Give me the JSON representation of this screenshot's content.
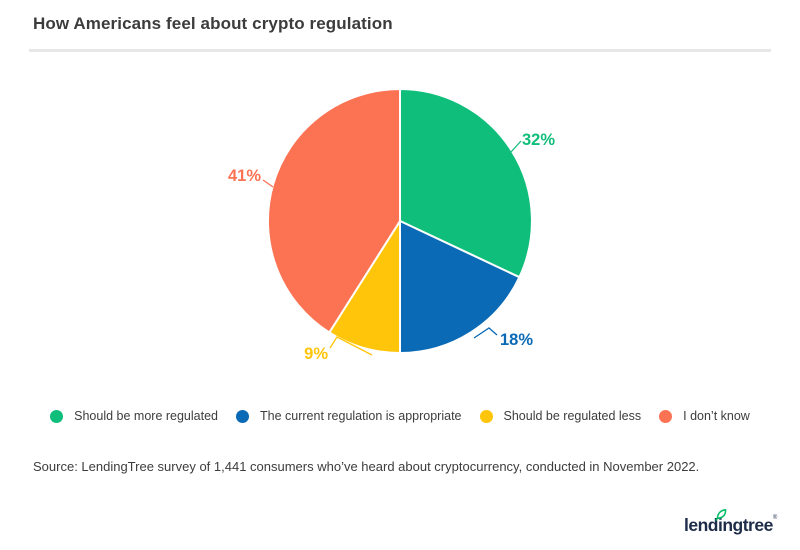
{
  "title": "How Americans feel about crypto regulation",
  "chart_data": {
    "type": "pie",
    "title": "How Americans feel about crypto regulation",
    "direction": "clockwise",
    "start_angle_deg": 0,
    "legend_position": "bottom",
    "slices": [
      {
        "label": "Should be more regulated",
        "value": 32,
        "display": "32%",
        "color": "#10be7b"
      },
      {
        "label": "The current regulation is appropriate",
        "value": 18,
        "display": "18%",
        "color": "#0a6ab6"
      },
      {
        "label": "Should be regulated less",
        "value": 9,
        "display": "9%",
        "color": "#ffc50a"
      },
      {
        "label": "I don’t know",
        "value": 41,
        "display": "41%",
        "color": "#fc7354"
      }
    ]
  },
  "source": "Source: LendingTree survey of 1,441 consumers who’ve heard about cryptocurrency, conducted in November 2022.",
  "logo": {
    "text": "lendingtree",
    "mark": "®",
    "leaf_color": "#00bd67"
  }
}
